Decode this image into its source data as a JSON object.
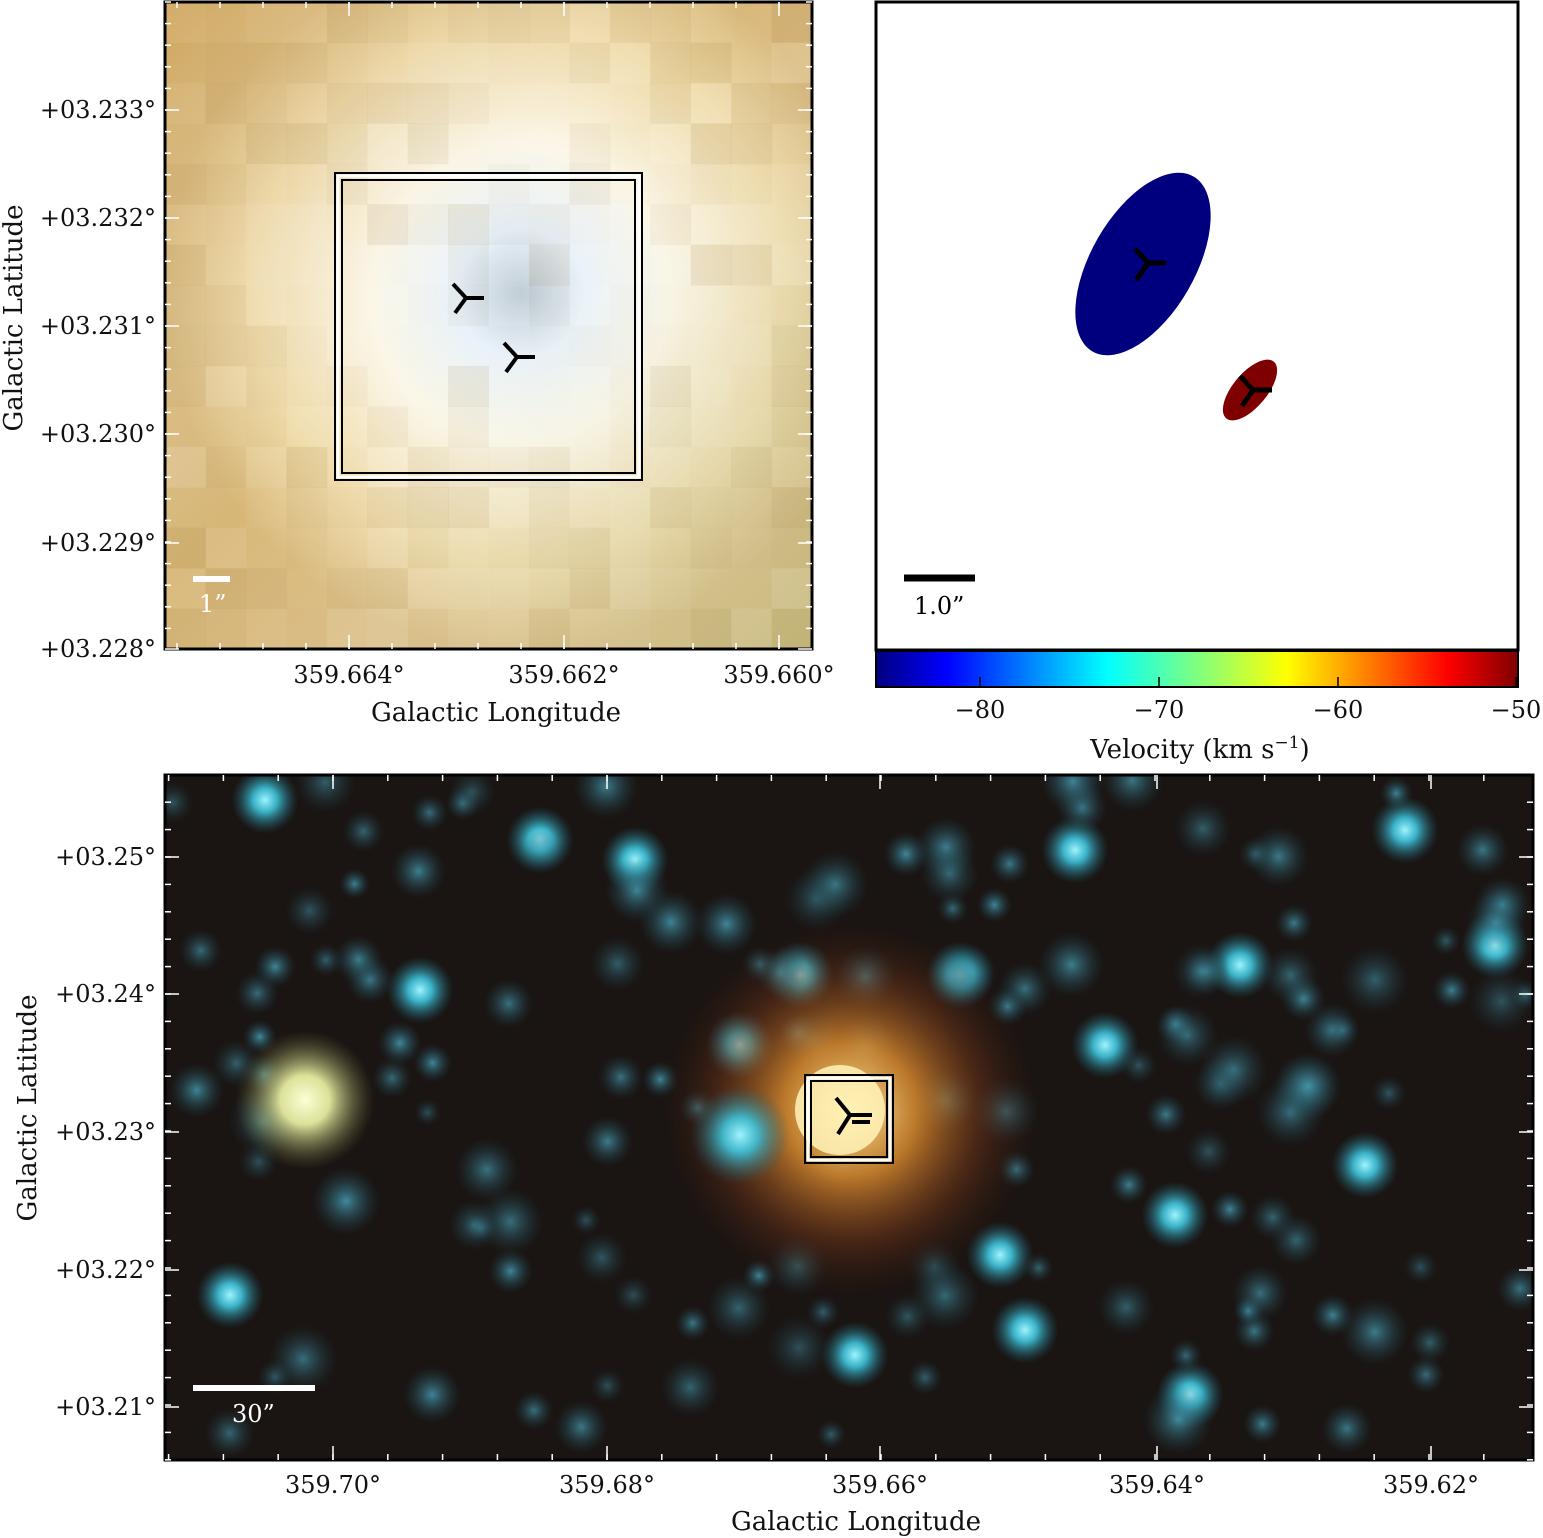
{
  "panels": {
    "zoom": {
      "yticks": [
        "+03.233°",
        "+03.232°",
        "+03.231°",
        "+03.230°",
        "+03.229°",
        "+03.228°"
      ],
      "xticks": [
        "359.664°",
        "359.662°",
        "359.660°"
      ],
      "xlabel": "Galactic Longitude",
      "ylabel": "Galactic Latitude",
      "scalebar": "1”"
    },
    "velocity": {
      "scalebar": "1.0”",
      "colorbar_ticks": [
        "−80",
        "−70",
        "−60",
        "−50"
      ],
      "colorbar_range": [
        -86,
        -50
      ],
      "colorbar_label": "Velocity (km s",
      "colorbar_label_sup": "−1",
      "colorbar_label_close": ")",
      "features": [
        {
          "type": "ellipse",
          "color": "#00007f",
          "velocity_approx": -86
        },
        {
          "type": "ellipse",
          "color": "#7f0000",
          "velocity_approx": -50
        }
      ]
    },
    "wide": {
      "yticks": [
        "+03.25°",
        "+03.24°",
        "+03.23°",
        "+03.22°",
        "+03.21°"
      ],
      "xticks": [
        "359.70°",
        "359.68°",
        "359.66°",
        "359.64°",
        "359.62°"
      ],
      "xlabel": "Galactic Longitude",
      "ylabel": "Galactic Latitude",
      "scalebar": "30”"
    }
  },
  "colors": {
    "zoom_background": "#e8cf8a",
    "wide_background": "#1a1412",
    "source_marker": "#000000"
  }
}
